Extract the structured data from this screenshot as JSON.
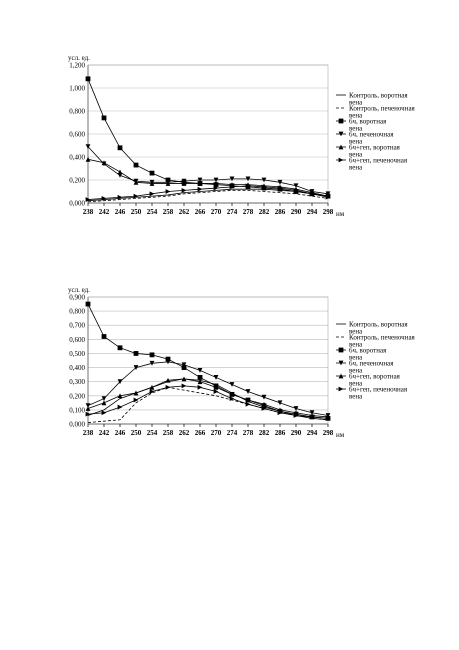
{
  "chart_data": [
    {
      "type": "line",
      "y_label": "усл. ед.",
      "x_label": "нм",
      "grid": true,
      "x": [
        238,
        242,
        246,
        250,
        254,
        258,
        262,
        266,
        270,
        274,
        278,
        282,
        286,
        290,
        294,
        298
      ],
      "xlim": [
        238,
        298
      ],
      "xticks": [
        238,
        242,
        246,
        250,
        254,
        258,
        262,
        266,
        270,
        274,
        278,
        282,
        286,
        290,
        294,
        298
      ],
      "ylim": [
        0,
        1.2
      ],
      "yticks": [
        {
          "value": 0,
          "label": "0,000"
        },
        {
          "value": 0.2,
          "label": "0,200"
        },
        {
          "value": 0.4,
          "label": "0,400"
        },
        {
          "value": 0.6,
          "label": "0,600"
        },
        {
          "value": 0.8,
          "label": "0,800"
        },
        {
          "value": 1.0,
          "label": "1,000"
        },
        {
          "value": 1.2,
          "label": "1,200"
        }
      ],
      "series": [
        {
          "name": "Контроль, воротная вена",
          "color": "#000",
          "marker": "none",
          "dashed": false,
          "values": [
            0.02,
            0.03,
            0.04,
            0.05,
            0.06,
            0.07,
            0.09,
            0.1,
            0.11,
            0.12,
            0.12,
            0.12,
            0.11,
            0.1,
            0.08,
            0.06
          ]
        },
        {
          "name": "Контроль, печеночная вена",
          "color": "#000",
          "marker": "none",
          "dashed": true,
          "values": [
            0.01,
            0.02,
            0.03,
            0.04,
            0.05,
            0.06,
            0.08,
            0.09,
            0.1,
            0.11,
            0.11,
            0.1,
            0.09,
            0.08,
            0.06,
            0.04
          ]
        },
        {
          "name": "6ч, воротная вена",
          "color": "#000",
          "marker": "square",
          "dashed": false,
          "values": [
            1.08,
            0.74,
            0.48,
            0.33,
            0.26,
            0.2,
            0.18,
            0.17,
            0.16,
            0.15,
            0.14,
            0.13,
            0.12,
            0.1,
            0.08,
            0.06
          ]
        },
        {
          "name": "6ч, печеночная вена",
          "color": "#000",
          "marker": "down",
          "dashed": false,
          "values": [
            0.49,
            0.34,
            0.24,
            0.19,
            0.18,
            0.18,
            0.19,
            0.2,
            0.2,
            0.21,
            0.21,
            0.2,
            0.18,
            0.15,
            0.1,
            0.08
          ]
        },
        {
          "name": "6ч+геп, воротная вена",
          "color": "#000",
          "marker": "up",
          "dashed": false,
          "values": [
            0.38,
            0.35,
            0.27,
            0.18,
            0.17,
            0.17,
            0.17,
            0.17,
            0.17,
            0.16,
            0.16,
            0.15,
            0.14,
            0.12,
            0.09,
            0.06
          ]
        },
        {
          "name": "6ч+геп, печеночная вена",
          "color": "#000",
          "marker": "right",
          "dashed": false,
          "values": [
            0.03,
            0.04,
            0.05,
            0.06,
            0.08,
            0.1,
            0.11,
            0.12,
            0.13,
            0.14,
            0.15,
            0.14,
            0.13,
            0.11,
            0.08,
            0.05
          ]
        }
      ]
    },
    {
      "type": "line",
      "y_label": "усл. ед.",
      "x_label": "нм",
      "grid": true,
      "x": [
        238,
        242,
        246,
        250,
        254,
        258,
        262,
        266,
        270,
        274,
        278,
        282,
        286,
        290,
        294,
        298
      ],
      "xlim": [
        238,
        298
      ],
      "xticks": [
        238,
        242,
        246,
        250,
        254,
        258,
        262,
        266,
        270,
        274,
        278,
        282,
        286,
        290,
        294,
        298
      ],
      "ylim": [
        0,
        0.9
      ],
      "yticks": [
        {
          "value": 0,
          "label": "0,000"
        },
        {
          "value": 0.1,
          "label": "0,100"
        },
        {
          "value": 0.2,
          "label": "0,200"
        },
        {
          "value": 0.3,
          "label": "0,300"
        },
        {
          "value": 0.4,
          "label": "0,400"
        },
        {
          "value": 0.5,
          "label": "0,500"
        },
        {
          "value": 0.6,
          "label": "0,600"
        },
        {
          "value": 0.7,
          "label": "0,700"
        },
        {
          "value": 0.8,
          "label": "0,800"
        },
        {
          "value": 0.9,
          "label": "0,900"
        }
      ],
      "series": [
        {
          "name": "Контроль, воротная вена",
          "color": "#000",
          "marker": "none",
          "dashed": false,
          "values": [
            0.06,
            0.1,
            0.18,
            0.22,
            0.26,
            0.3,
            0.32,
            0.31,
            0.28,
            0.22,
            0.16,
            0.12,
            0.09,
            0.06,
            0.04,
            0.03
          ]
        },
        {
          "name": "Контроль, печеночная вена",
          "color": "#000",
          "marker": "none",
          "dashed": true,
          "values": [
            0.01,
            0.02,
            0.03,
            0.15,
            0.22,
            0.26,
            0.24,
            0.22,
            0.2,
            0.17,
            0.14,
            0.11,
            0.08,
            0.06,
            0.04,
            0.03
          ]
        },
        {
          "name": "6ч, воротная вена",
          "color": "#000",
          "marker": "square",
          "dashed": false,
          "values": [
            0.85,
            0.62,
            0.54,
            0.5,
            0.49,
            0.46,
            0.4,
            0.33,
            0.27,
            0.21,
            0.17,
            0.13,
            0.09,
            0.07,
            0.05,
            0.04
          ]
        },
        {
          "name": "6ч, печеночная вена",
          "color": "#000",
          "marker": "down",
          "dashed": false,
          "values": [
            0.13,
            0.18,
            0.3,
            0.4,
            0.43,
            0.44,
            0.42,
            0.38,
            0.33,
            0.28,
            0.23,
            0.19,
            0.15,
            0.11,
            0.08,
            0.06
          ]
        },
        {
          "name": "6ч+геп, воротная вена",
          "color": "#000",
          "marker": "up",
          "dashed": false,
          "values": [
            0.11,
            0.15,
            0.2,
            0.22,
            0.26,
            0.31,
            0.32,
            0.3,
            0.26,
            0.21,
            0.17,
            0.14,
            0.1,
            0.08,
            0.06,
            0.05
          ]
        },
        {
          "name": "6ч+геп, печеночная вена",
          "color": "#000",
          "marker": "right",
          "dashed": false,
          "values": [
            0.07,
            0.08,
            0.12,
            0.17,
            0.23,
            0.26,
            0.27,
            0.26,
            0.23,
            0.18,
            0.14,
            0.11,
            0.08,
            0.06,
            0.05,
            0.04
          ]
        }
      ]
    }
  ]
}
